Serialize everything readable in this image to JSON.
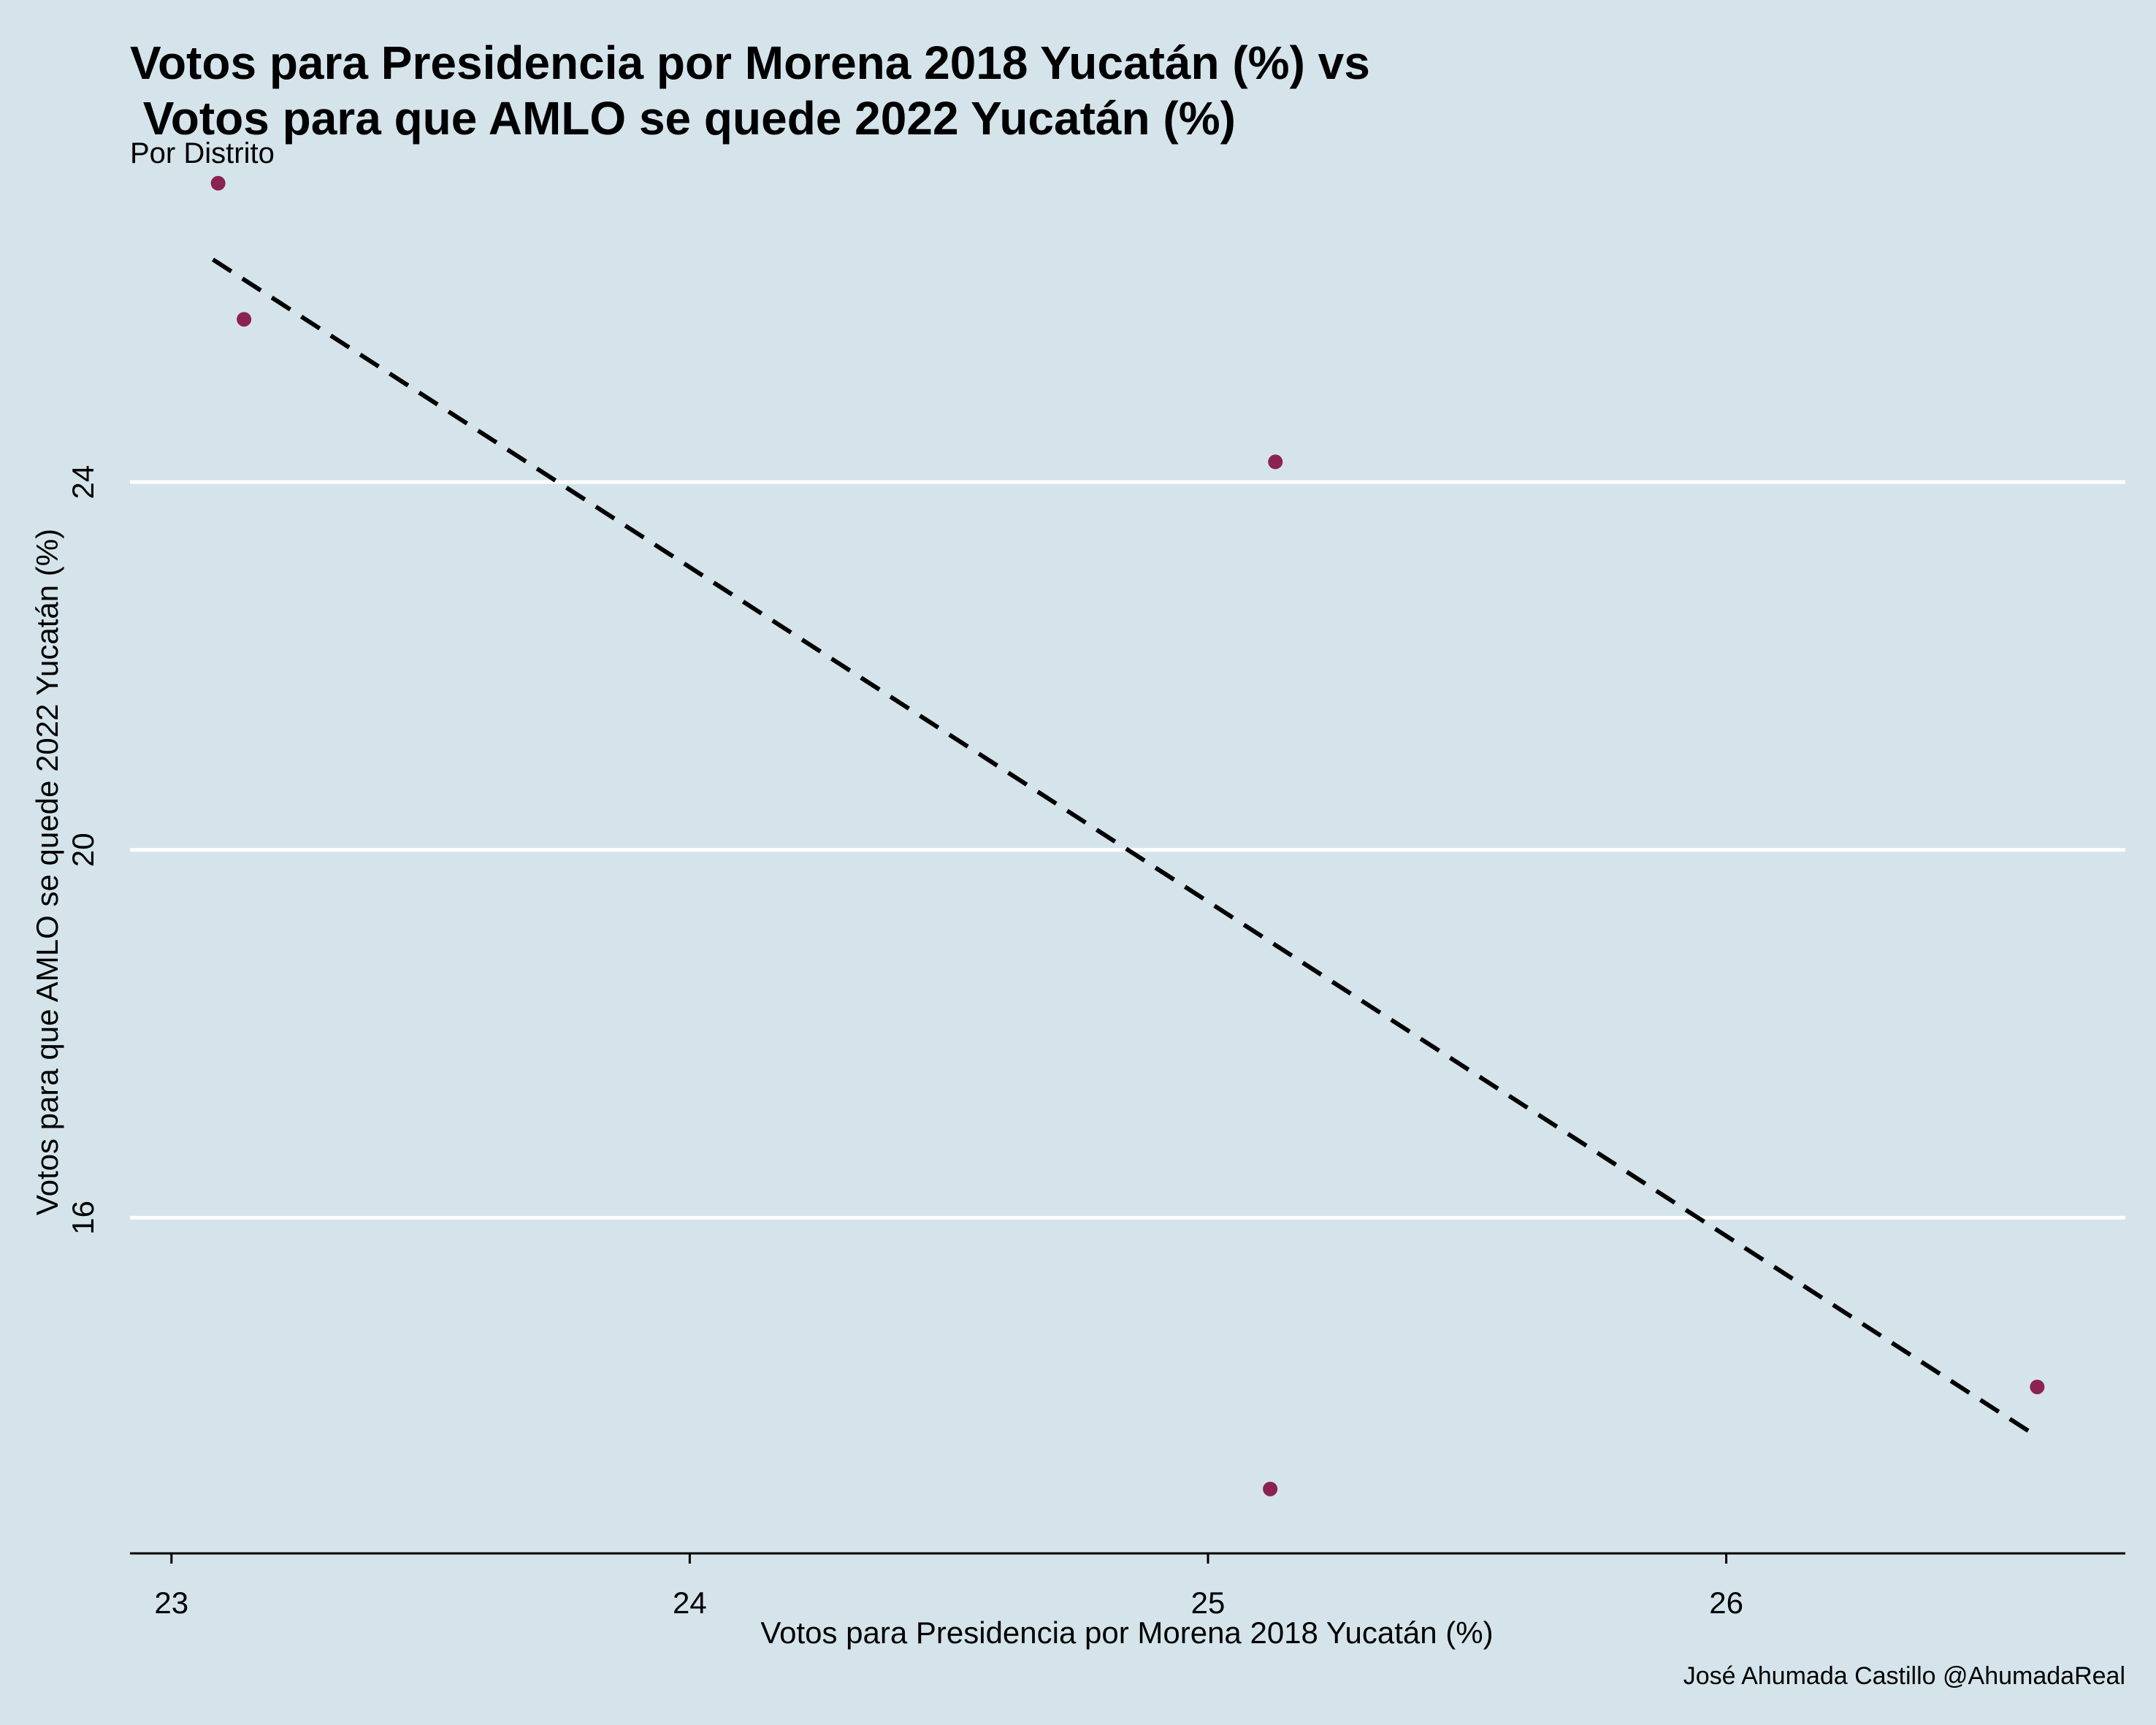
{
  "chart_data": {
    "type": "scatter",
    "title_lines": [
      "Votos para Presidencia por Morena 2018 Yucatán (%) vs",
      " Votos para que AMLO se quede 2022 Yucatán (%)"
    ],
    "subtitle": "Por Distrito",
    "xlabel": "Votos para Presidencia por Morena 2018 Yucatán (%)",
    "ylabel": "Votos para que AMLO se quede 2022 Yucatán (%)",
    "caption": "José Ahumada Castillo @AhumadaReal",
    "xlim": [
      22.92,
      26.77
    ],
    "ylim": [
      12.35,
      27.4
    ],
    "x_ticks": [
      23,
      24,
      25,
      26
    ],
    "y_ticks": [
      16,
      20,
      24
    ],
    "x_tick_labels": [
      "23",
      "24",
      "25",
      "26"
    ],
    "y_tick_labels": [
      "16",
      "20",
      "24"
    ],
    "points": [
      {
        "x": 23.09,
        "y": 27.25
      },
      {
        "x": 23.14,
        "y": 25.77
      },
      {
        "x": 25.13,
        "y": 24.22
      },
      {
        "x": 25.12,
        "y": 13.05
      },
      {
        "x": 26.6,
        "y": 14.16
      }
    ],
    "trend_line": {
      "style": "dashed",
      "from": {
        "x": 23.08,
        "y": 26.42
      },
      "to": {
        "x": 26.6,
        "y": 13.62
      }
    },
    "grid": {
      "horizontal": true,
      "vertical": false
    },
    "colors": {
      "background": "#d5e4eb",
      "point": "#8b2252",
      "grid": "#ffffff",
      "trend": "#000000",
      "axis": "#000000"
    }
  }
}
